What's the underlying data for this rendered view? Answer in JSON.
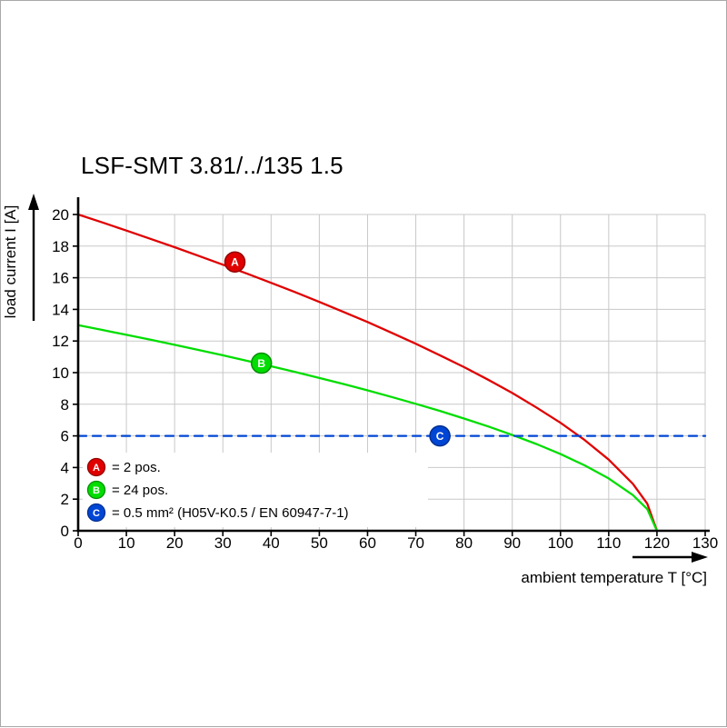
{
  "title": "LSF-SMT 3.81/../135 1.5",
  "colors": {
    "grid": "#c8c8c8",
    "axis": "#000000",
    "legend_background": "#ffffff",
    "red": "#e00000",
    "green": "#00dd00",
    "blue": "#0046d5"
  },
  "chart_data": {
    "type": "line",
    "title": "LSF-SMT 3.81/../135 1.5",
    "xlabel": "ambient temperature T [°C]",
    "ylabel": "load current I [A]",
    "xlim": [
      0,
      130
    ],
    "ylim": [
      0,
      20
    ],
    "x_ticks": [
      0,
      10,
      20,
      30,
      40,
      50,
      60,
      70,
      80,
      90,
      100,
      110,
      120,
      130
    ],
    "y_ticks": [
      0,
      2,
      4,
      6,
      8,
      10,
      12,
      14,
      16,
      18,
      20
    ],
    "grid": true,
    "legend_position": "bottom-left-inside",
    "series": [
      {
        "id": "A",
        "legend": "= 2 pos.",
        "color": "#e00000",
        "edge": "#900000",
        "style": "solid",
        "points": [
          [
            0,
            20
          ],
          [
            5,
            19.5
          ],
          [
            10,
            18.98
          ],
          [
            15,
            18.46
          ],
          [
            20,
            17.93
          ],
          [
            25,
            17.38
          ],
          [
            30,
            16.83
          ],
          [
            35,
            16.26
          ],
          [
            40,
            15.68
          ],
          [
            45,
            15.09
          ],
          [
            50,
            14.47
          ],
          [
            55,
            13.84
          ],
          [
            60,
            13.2
          ],
          [
            65,
            12.52
          ],
          [
            70,
            11.83
          ],
          [
            75,
            11.1
          ],
          [
            80,
            10.35
          ],
          [
            85,
            9.55
          ],
          [
            90,
            8.71
          ],
          [
            95,
            7.8
          ],
          [
            100,
            6.83
          ],
          [
            105,
            5.74
          ],
          [
            110,
            4.5
          ],
          [
            115,
            2.97
          ],
          [
            118,
            1.71
          ],
          [
            120,
            0
          ]
        ]
      },
      {
        "id": "B",
        "legend": "= 24 pos.",
        "color": "#00dd00",
        "edge": "#008f00",
        "style": "solid",
        "points": [
          [
            0,
            13
          ],
          [
            5,
            12.7
          ],
          [
            10,
            12.39
          ],
          [
            15,
            12.08
          ],
          [
            20,
            11.76
          ],
          [
            25,
            11.43
          ],
          [
            30,
            11.1
          ],
          [
            35,
            10.75
          ],
          [
            40,
            10.4
          ],
          [
            45,
            10.04
          ],
          [
            50,
            9.66
          ],
          [
            55,
            9.28
          ],
          [
            60,
            8.88
          ],
          [
            65,
            8.46
          ],
          [
            70,
            8.03
          ],
          [
            75,
            7.58
          ],
          [
            80,
            7.1
          ],
          [
            85,
            6.6
          ],
          [
            90,
            6.06
          ],
          [
            95,
            5.49
          ],
          [
            100,
            4.85
          ],
          [
            105,
            4.14
          ],
          [
            110,
            3.31
          ],
          [
            115,
            2.26
          ],
          [
            118,
            1.37
          ],
          [
            120,
            0
          ]
        ]
      },
      {
        "id": "C",
        "legend": "= 0.5 mm² (H05V-K0.5 / EN 60947-7-1)",
        "color": "#0046d5",
        "edge": "#002f8f",
        "style": "dashed",
        "points": [
          [
            0,
            6
          ],
          [
            130,
            6
          ]
        ]
      }
    ],
    "markers": [
      {
        "series": "A",
        "x": 32.5,
        "y": 17.0
      },
      {
        "series": "B",
        "x": 38,
        "y": 10.6
      },
      {
        "series": "C",
        "x": 75,
        "y": 6.0
      }
    ]
  }
}
